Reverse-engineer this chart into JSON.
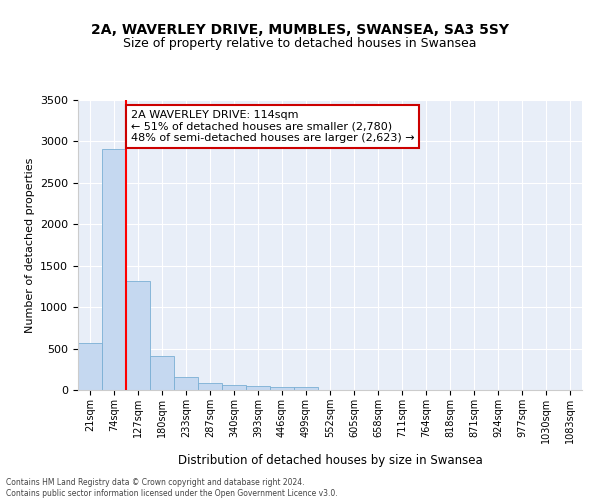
{
  "title": "2A, WAVERLEY DRIVE, MUMBLES, SWANSEA, SA3 5SY",
  "subtitle": "Size of property relative to detached houses in Swansea",
  "xlabel": "Distribution of detached houses by size in Swansea",
  "ylabel": "Number of detached properties",
  "bar_color": "#c5d8f0",
  "bar_edge_color": "#7aafd4",
  "background_color": "#e8eef8",
  "grid_color": "#ffffff",
  "bin_labels": [
    "21sqm",
    "74sqm",
    "127sqm",
    "180sqm",
    "233sqm",
    "287sqm",
    "340sqm",
    "393sqm",
    "446sqm",
    "499sqm",
    "552sqm",
    "605sqm",
    "658sqm",
    "711sqm",
    "764sqm",
    "818sqm",
    "871sqm",
    "924sqm",
    "977sqm",
    "1030sqm",
    "1083sqm"
  ],
  "bar_values": [
    570,
    2910,
    1320,
    410,
    155,
    80,
    58,
    52,
    42,
    38,
    0,
    0,
    0,
    0,
    0,
    0,
    0,
    0,
    0,
    0,
    0
  ],
  "ylim": [
    0,
    3500
  ],
  "yticks": [
    0,
    500,
    1000,
    1500,
    2000,
    2500,
    3000,
    3500
  ],
  "vline_x": 1.5,
  "annotation_text": "2A WAVERLEY DRIVE: 114sqm\n← 51% of detached houses are smaller (2,780)\n48% of semi-detached houses are larger (2,623) →",
  "annotation_box_color": "#ffffff",
  "annotation_box_edge_color": "#cc0000",
  "footer_line1": "Contains HM Land Registry data © Crown copyright and database right 2024.",
  "footer_line2": "Contains public sector information licensed under the Open Government Licence v3.0."
}
